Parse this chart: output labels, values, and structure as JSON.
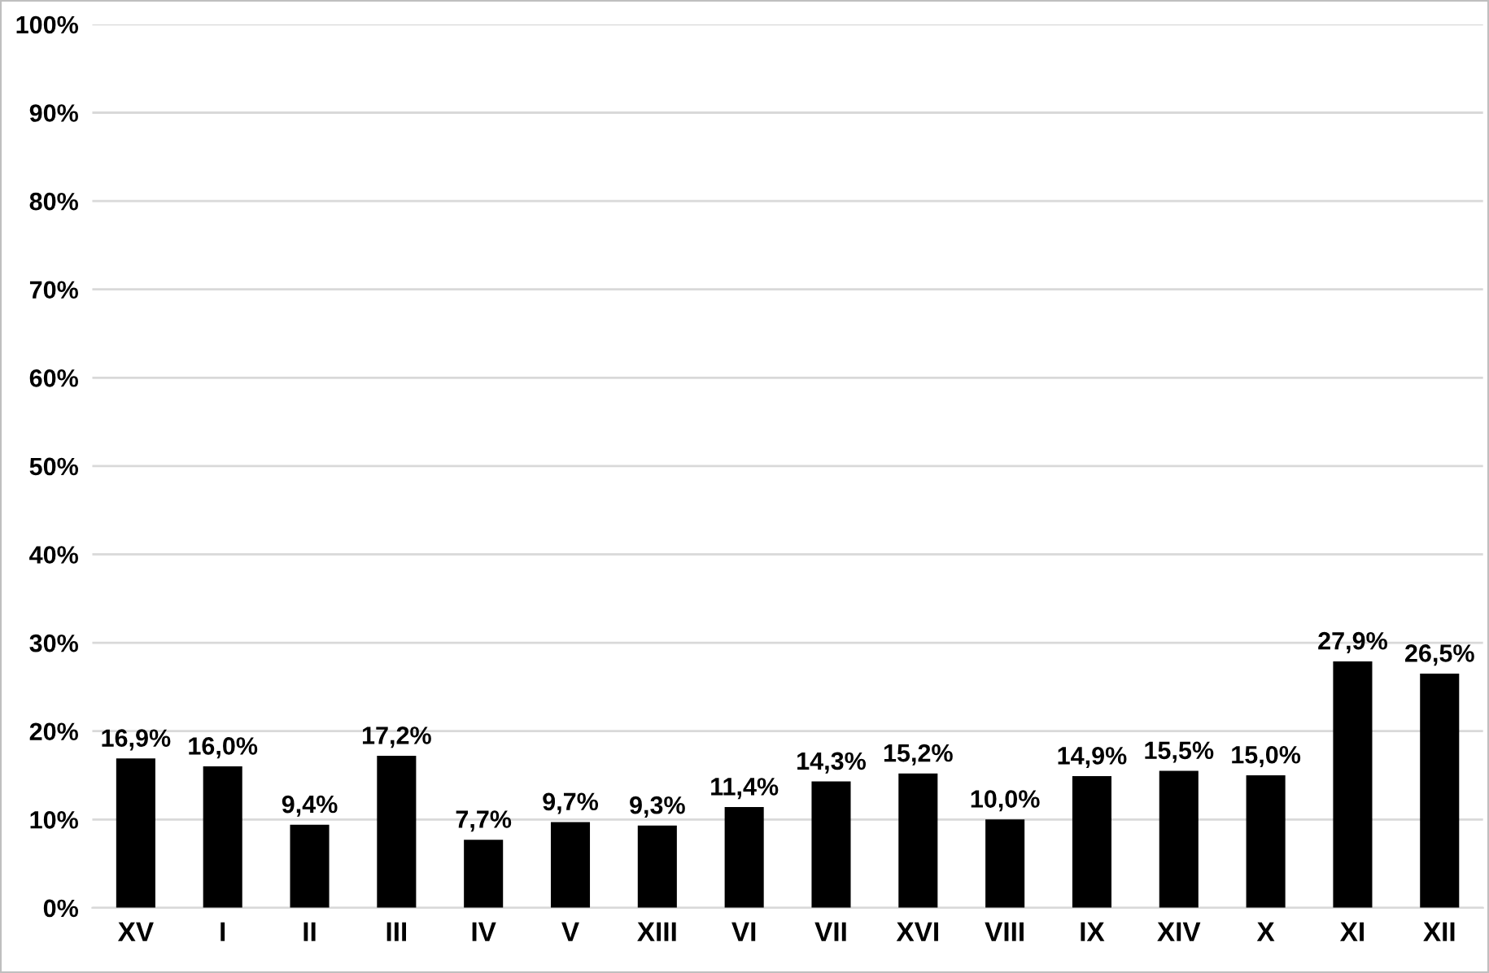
{
  "chart_data": {
    "type": "bar",
    "categories": [
      "XV",
      "I",
      "II",
      "III",
      "IV",
      "V",
      "XIII",
      "VI",
      "VII",
      "XVI",
      "VIII",
      "IX",
      "XIV",
      "X",
      "XI",
      "XII"
    ],
    "values": [
      16.9,
      16.0,
      9.4,
      17.2,
      7.7,
      9.7,
      9.3,
      11.4,
      14.3,
      15.2,
      10.0,
      14.9,
      15.5,
      15.0,
      27.9,
      26.5
    ],
    "value_labels": [
      "16,9%",
      "16,0%",
      "9,4%",
      "17,2%",
      "7,7%",
      "9,7%",
      "9,3%",
      "11,4%",
      "14,3%",
      "15,2%",
      "10,0%",
      "14,9%",
      "15,5%",
      "15,0%",
      "27,9%",
      "26,5%"
    ],
    "color": "#000000",
    "ylim": [
      0,
      100
    ],
    "yticks": [
      {
        "value": 0,
        "label": "0%"
      },
      {
        "value": 10,
        "label": "10%"
      },
      {
        "value": 20,
        "label": "20%"
      },
      {
        "value": 30,
        "label": "30%"
      },
      {
        "value": 40,
        "label": "40%"
      },
      {
        "value": 50,
        "label": "50%"
      },
      {
        "value": 60,
        "label": "60%"
      },
      {
        "value": 70,
        "label": "70%"
      },
      {
        "value": 80,
        "label": "80%"
      },
      {
        "value": 90,
        "label": "90%"
      },
      {
        "value": 100,
        "label": "100%"
      }
    ],
    "grid": "y",
    "legend": false
  }
}
